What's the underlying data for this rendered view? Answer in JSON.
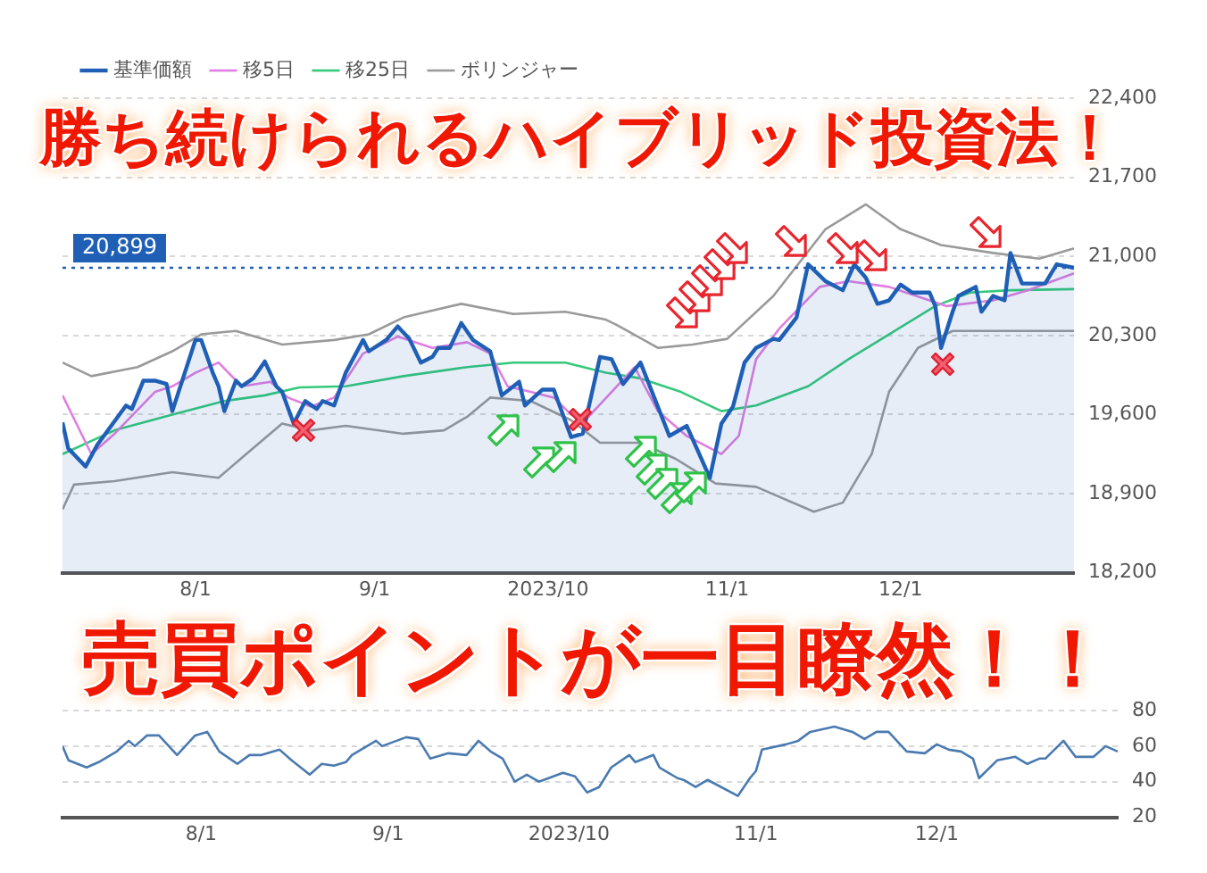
{
  "chart_data": [
    {
      "type": "line",
      "annotations": [
        "勝ち続けられるハイブリッド投資法！"
      ],
      "legend": "top left",
      "grid": "y",
      "xlim": [
        "2023-07-09",
        "2023-12-31"
      ],
      "xticks": [
        {
          "value": "2023-08-01",
          "label": "8/1"
        },
        {
          "value": "2023-09-01",
          "label": "9/1"
        },
        {
          "value": "2023-10-01",
          "label": "2023/10"
        },
        {
          "value": "2023-11-01",
          "label": "11/1"
        },
        {
          "value": "2023-12-01",
          "label": "12/1"
        }
      ],
      "ylim": [
        18200,
        22400
      ],
      "yticks": [
        {
          "value": 18200,
          "label": "18,200"
        },
        {
          "value": 18900,
          "label": "18,900"
        },
        {
          "value": 19600,
          "label": "19,600"
        },
        {
          "value": 20300,
          "label": "20,300"
        },
        {
          "value": 21000,
          "label": "21,000"
        },
        {
          "value": 21700,
          "label": "21,700"
        },
        {
          "value": 22400,
          "label": "22,400"
        }
      ],
      "ref_lines": [
        {
          "axis": "y",
          "value": 20899,
          "label": "20,899",
          "color": "#1f5fb5",
          "line_style": "dotted"
        }
      ],
      "series": [
        {
          "name": "基準価額",
          "type": "area",
          "color": "#1f5fb5",
          "x": [
            "2023-07-09",
            "2023-07-10",
            "2023-07-13",
            "2023-07-15",
            "2023-07-20",
            "2023-07-21",
            "2023-07-23",
            "2023-07-25",
            "2023-07-27",
            "2023-07-28",
            "2023-08-01",
            "2023-08-02",
            "2023-08-04",
            "2023-08-05",
            "2023-08-06",
            "2023-08-08",
            "2023-08-09",
            "2023-08-11",
            "2023-08-13",
            "2023-08-15",
            "2023-08-16",
            "2023-08-18",
            "2023-08-20",
            "2023-08-22",
            "2023-08-23",
            "2023-08-25",
            "2023-08-27",
            "2023-08-30",
            "2023-08-31",
            "2023-09-03",
            "2023-09-05",
            "2023-09-07",
            "2023-09-09",
            "2023-09-11",
            "2023-09-12",
            "2023-09-14",
            "2023-09-16",
            "2023-09-18",
            "2023-09-21",
            "2023-09-23",
            "2023-09-26",
            "2023-09-27",
            "2023-09-30",
            "2023-10-02",
            "2023-10-05",
            "2023-10-07",
            "2023-10-10",
            "2023-10-12",
            "2023-10-14",
            "2023-10-17",
            "2023-10-22",
            "2023-10-25",
            "2023-10-29",
            "2023-10-31",
            "2023-11-02",
            "2023-11-04",
            "2023-11-06",
            "2023-11-09",
            "2023-11-10",
            "2023-11-13",
            "2023-11-15",
            "2023-11-18",
            "2023-11-21",
            "2023-11-23",
            "2023-11-25",
            "2023-11-27",
            "2023-11-29",
            "2023-12-01",
            "2023-12-03",
            "2023-12-06",
            "2023-12-07",
            "2023-12-08",
            "2023-12-10",
            "2023-12-11",
            "2023-12-14",
            "2023-12-15",
            "2023-12-17",
            "2023-12-19",
            "2023-12-20",
            "2023-12-22",
            "2023-12-26",
            "2023-12-28",
            "2023-12-31"
          ],
          "values": [
            19530,
            19300,
            19140,
            19330,
            19680,
            19650,
            19900,
            19900,
            19870,
            19630,
            20260,
            20260,
            19970,
            19850,
            19630,
            19900,
            19850,
            19920,
            20070,
            19850,
            19800,
            19520,
            19720,
            19650,
            19720,
            19680,
            19970,
            20260,
            20160,
            20260,
            20380,
            20270,
            20060,
            20110,
            20190,
            20190,
            20410,
            20260,
            20160,
            19770,
            19890,
            19680,
            19820,
            19820,
            19400,
            19430,
            20110,
            20090,
            19870,
            20060,
            19410,
            19500,
            19040,
            19520,
            19670,
            20060,
            20190,
            20270,
            20260,
            20460,
            20930,
            20780,
            20700,
            20930,
            20810,
            20580,
            20610,
            20750,
            20680,
            20680,
            20560,
            20190,
            20510,
            20650,
            20730,
            20510,
            20650,
            20610,
            21030,
            20760,
            20760,
            20930,
            20899
          ]
        },
        {
          "name": "移5日",
          "color": "#e07ee0",
          "x": [
            "2023-07-09",
            "2023-07-14",
            "2023-07-18",
            "2023-07-25",
            "2023-07-28",
            "2023-08-01",
            "2023-08-05",
            "2023-08-09",
            "2023-08-14",
            "2023-08-17",
            "2023-08-21",
            "2023-08-25",
            "2023-08-30",
            "2023-09-05",
            "2023-09-11",
            "2023-09-17",
            "2023-09-21",
            "2023-09-24",
            "2023-09-28",
            "2023-10-02",
            "2023-10-05",
            "2023-10-08",
            "2023-10-12",
            "2023-10-16",
            "2023-10-20",
            "2023-10-25",
            "2023-10-31",
            "2023-11-03",
            "2023-11-06",
            "2023-11-10",
            "2023-11-17",
            "2023-11-22",
            "2023-11-29",
            "2023-12-06",
            "2023-12-09",
            "2023-12-17",
            "2023-12-23",
            "2023-12-31"
          ],
          "values": [
            19770,
            19250,
            19430,
            19800,
            19850,
            19970,
            20060,
            19850,
            19890,
            19750,
            19670,
            19750,
            20140,
            20290,
            20190,
            20240,
            20140,
            19850,
            19800,
            19750,
            19600,
            19580,
            19800,
            20020,
            19630,
            19410,
            19250,
            19410,
            20090,
            20360,
            20730,
            20780,
            20730,
            20610,
            20560,
            20610,
            20700,
            20850
          ]
        },
        {
          "name": "移25日",
          "color": "#34c97a",
          "x": [
            "2023-07-09",
            "2023-07-18",
            "2023-07-28",
            "2023-08-06",
            "2023-08-13",
            "2023-08-19",
            "2023-08-27",
            "2023-09-06",
            "2023-09-17",
            "2023-09-25",
            "2023-10-04",
            "2023-10-11",
            "2023-10-17",
            "2023-10-24",
            "2023-10-31",
            "2023-11-06",
            "2023-11-15",
            "2023-11-22",
            "2023-11-29",
            "2023-12-07",
            "2023-12-13",
            "2023-12-20",
            "2023-12-31"
          ],
          "values": [
            19250,
            19460,
            19600,
            19720,
            19770,
            19840,
            19850,
            19940,
            20020,
            20060,
            20060,
            19970,
            19920,
            19800,
            19630,
            19680,
            19850,
            20090,
            20310,
            20560,
            20680,
            20700,
            20710
          ]
        },
        {
          "name": "ボリンジャー",
          "color": "#9a9a9a",
          "x": [
            "2023-07-09",
            "2023-07-14",
            "2023-07-22",
            "2023-07-28",
            "2023-08-02",
            "2023-08-08",
            "2023-08-16",
            "2023-08-25",
            "2023-08-31",
            "2023-09-06",
            "2023-09-16",
            "2023-09-25",
            "2023-10-04",
            "2023-10-11",
            "2023-10-13",
            "2023-10-20",
            "2023-10-26",
            "2023-11-01",
            "2023-11-09",
            "2023-11-18",
            "2023-11-25",
            "2023-12-01",
            "2023-12-08",
            "2023-12-17",
            "2023-12-25",
            "2023-12-31"
          ],
          "values": [
            20060,
            19940,
            20020,
            20160,
            20310,
            20340,
            20220,
            20260,
            20310,
            20460,
            20580,
            20490,
            20510,
            20440,
            20390,
            20190,
            20220,
            20270,
            20650,
            21240,
            21460,
            21240,
            21100,
            21030,
            20980,
            21070
          ]
        },
        {
          "color": "#9a9a9a",
          "x": [
            "2023-07-09",
            "2023-07-11",
            "2023-07-18",
            "2023-07-28",
            "2023-08-05",
            "2023-08-10",
            "2023-08-16",
            "2023-08-21",
            "2023-08-27",
            "2023-09-06",
            "2023-09-13",
            "2023-09-17",
            "2023-09-21",
            "2023-09-28",
            "2023-10-05",
            "2023-10-10",
            "2023-10-17",
            "2023-10-23",
            "2023-10-30",
            "2023-11-06",
            "2023-11-16",
            "2023-11-21",
            "2023-11-26",
            "2023-11-29",
            "2023-12-04",
            "2023-12-10",
            "2023-12-18",
            "2023-12-31"
          ],
          "values": [
            18760,
            18980,
            19010,
            19090,
            19040,
            19260,
            19520,
            19460,
            19500,
            19430,
            19460,
            19580,
            19750,
            19720,
            19550,
            19350,
            19350,
            19210,
            18990,
            18960,
            18740,
            18820,
            19250,
            19800,
            20190,
            20340,
            20340,
            20340
          ]
        }
      ]
    },
    {
      "type": "line",
      "annotations": [
        "売買ポイントが一目瞭然！！"
      ],
      "grid": "y",
      "xlim": [
        "2023-07-09",
        "2023-12-31"
      ],
      "xticks": [
        {
          "value": "2023-08-01",
          "label": "8/1"
        },
        {
          "value": "2023-09-01",
          "label": "9/1"
        },
        {
          "value": "2023-10-01",
          "label": "2023/10"
        },
        {
          "value": "2023-11-01",
          "label": "11/1"
        },
        {
          "value": "2023-12-01",
          "label": "12/1"
        }
      ],
      "ylim": [
        20,
        80
      ],
      "yticks": [
        20,
        40,
        60,
        80
      ],
      "series": [
        {
          "color": "#4a7ab0",
          "x": [
            "2023-07-09",
            "2023-07-10",
            "2023-07-13",
            "2023-07-15",
            "2023-07-18",
            "2023-07-20",
            "2023-07-21",
            "2023-07-23",
            "2023-07-25",
            "2023-07-28",
            "2023-07-31",
            "2023-08-02",
            "2023-08-04",
            "2023-08-07",
            "2023-08-09",
            "2023-08-11",
            "2023-08-14",
            "2023-08-16",
            "2023-08-19",
            "2023-08-21",
            "2023-08-23",
            "2023-08-25",
            "2023-08-26",
            "2023-08-30",
            "2023-08-31",
            "2023-09-04",
            "2023-09-06",
            "2023-09-08",
            "2023-09-11",
            "2023-09-14",
            "2023-09-16",
            "2023-09-18",
            "2023-09-20",
            "2023-09-22",
            "2023-09-24",
            "2023-09-26",
            "2023-09-30",
            "2023-10-02",
            "2023-10-04",
            "2023-10-06",
            "2023-10-08",
            "2023-10-11",
            "2023-10-12",
            "2023-10-15",
            "2023-10-16",
            "2023-10-19",
            "2023-10-20",
            "2023-10-22",
            "2023-10-24",
            "2023-10-29",
            "2023-10-31",
            "2023-11-01",
            "2023-11-02",
            "2023-11-06",
            "2023-11-08",
            "2023-11-10",
            "2023-11-14",
            "2023-11-17",
            "2023-11-19",
            "2023-11-21",
            "2023-11-23",
            "2023-11-26",
            "2023-11-29",
            "2023-12-01",
            "2023-12-03",
            "2023-12-05",
            "2023-12-07",
            "2023-12-08",
            "2023-12-11",
            "2023-12-14",
            "2023-12-16",
            "2023-12-18",
            "2023-12-19",
            "2023-12-22",
            "2023-12-24",
            "2023-12-27",
            "2023-12-29",
            "2023-12-31"
          ],
          "values": [
            60,
            52,
            48,
            51,
            57,
            63,
            60,
            66,
            66,
            55,
            66,
            68,
            57,
            50,
            55,
            55,
            58,
            52,
            44,
            50,
            49,
            51,
            55,
            63,
            60,
            65,
            64,
            53,
            56,
            55,
            63,
            57,
            53,
            40,
            44,
            40,
            45,
            43,
            34,
            37,
            48,
            55,
            51,
            55,
            48,
            42,
            41,
            37,
            41,
            32,
            42,
            46,
            58,
            61,
            63,
            68,
            71,
            68,
            64,
            68,
            68,
            57,
            56,
            61,
            58,
            57,
            53,
            42,
            52,
            54,
            50,
            53,
            53,
            63,
            54,
            54,
            60,
            57
          ]
        }
      ]
    }
  ]
}
